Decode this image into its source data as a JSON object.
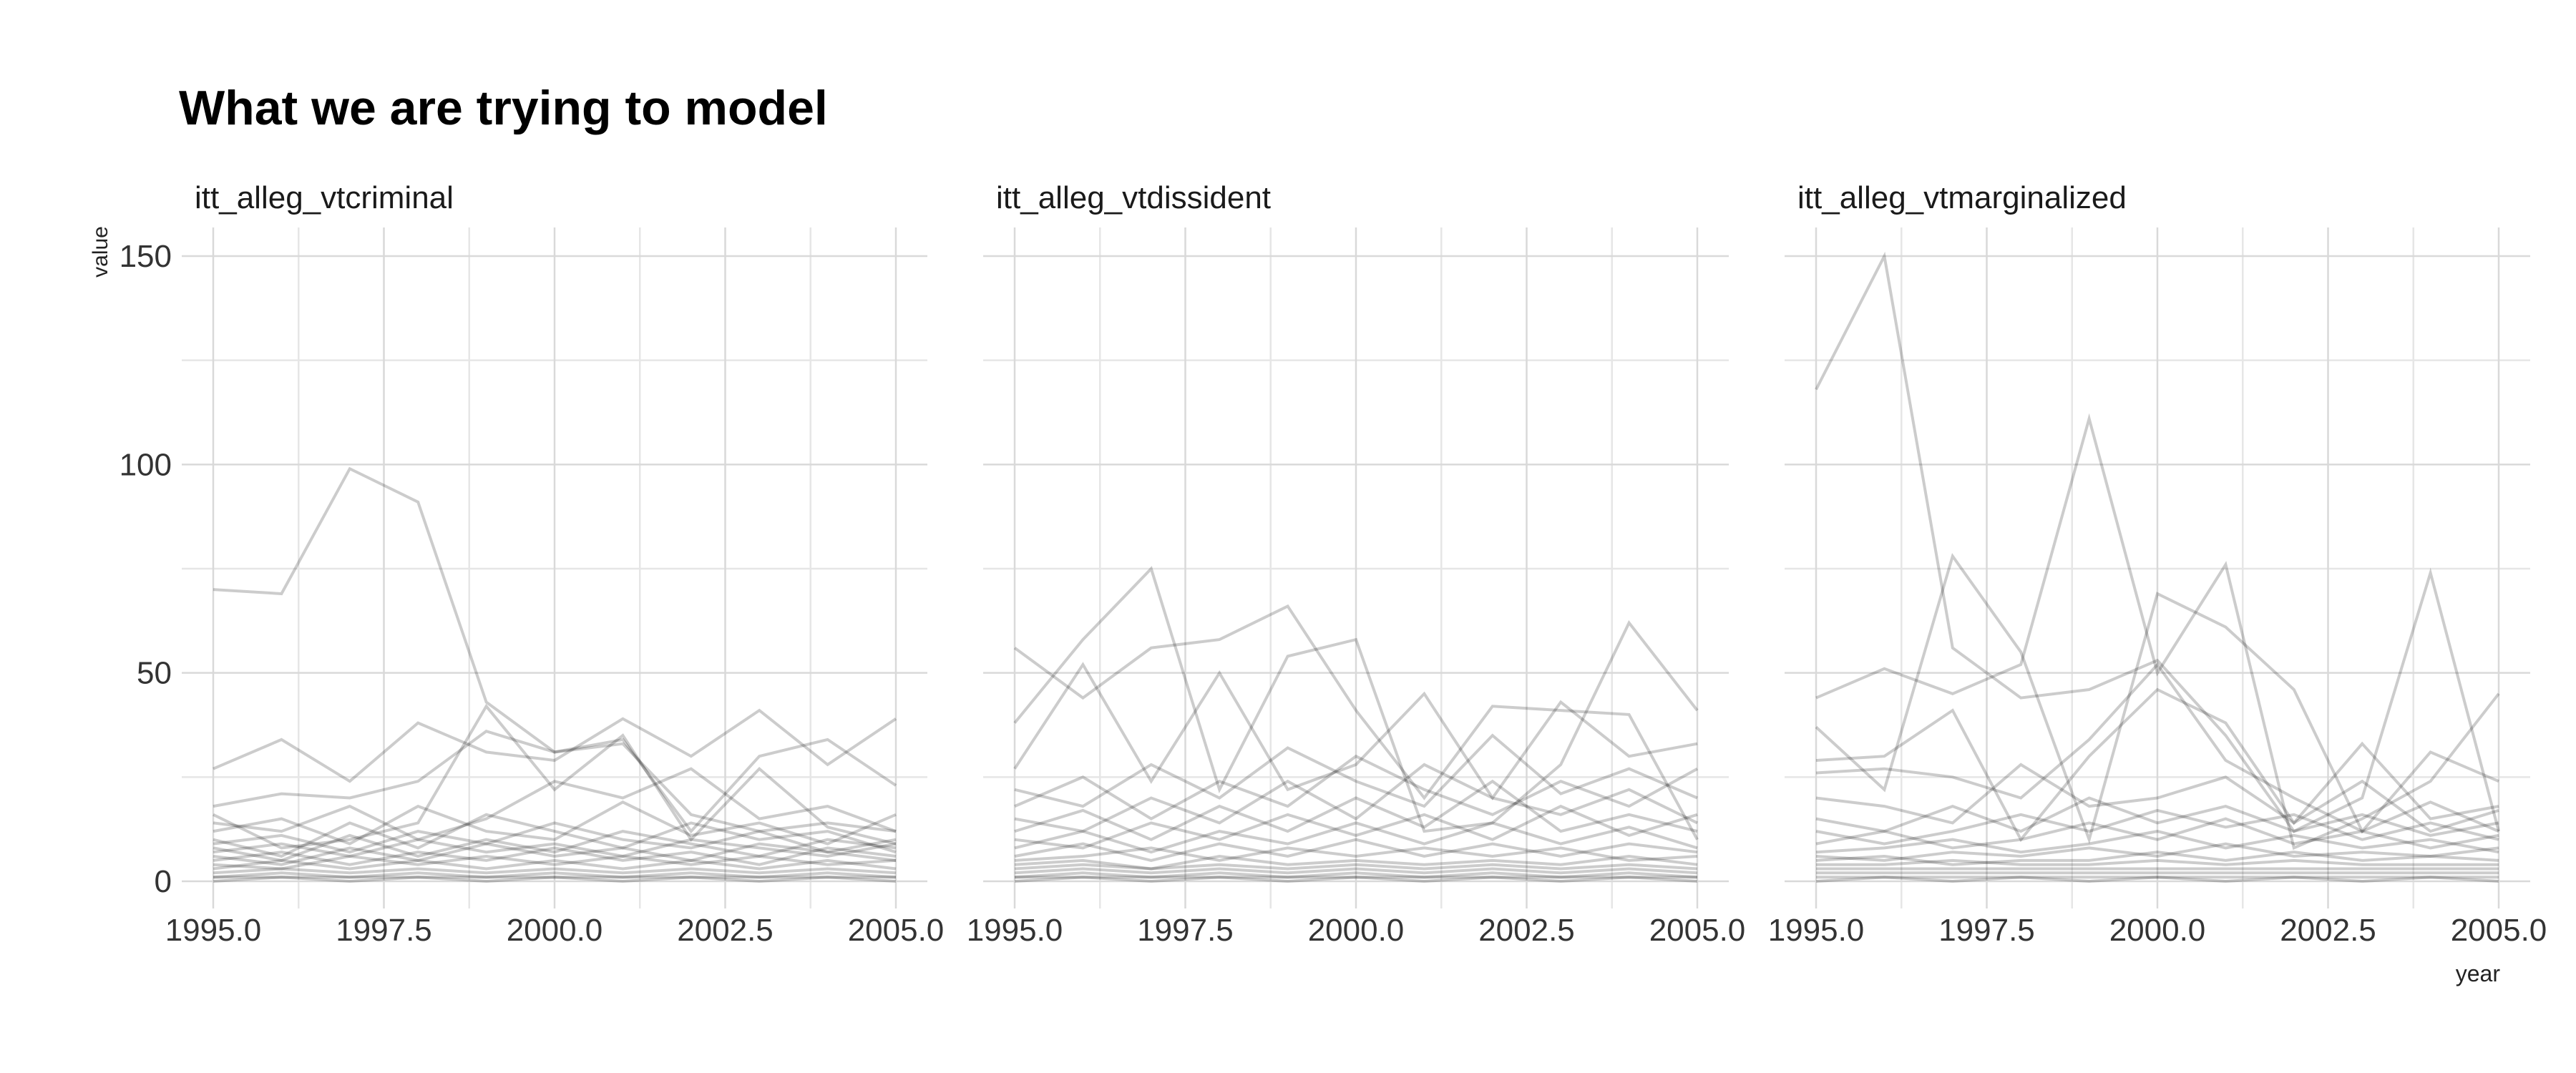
{
  "title": "What we are trying to model",
  "chart_data": {
    "type": "line",
    "xlabel": "year",
    "ylabel": "value",
    "xlim": [
      1995,
      2005
    ],
    "ylim": [
      0,
      150
    ],
    "x_ticks": [
      "1995.0",
      "1997.5",
      "2000.0",
      "2002.5",
      "2005.0"
    ],
    "y_ticks": [
      "0",
      "50",
      "100",
      "150"
    ],
    "x": [
      1995,
      1996,
      1997,
      1998,
      1999,
      2000,
      2001,
      2002,
      2003,
      2004,
      2005
    ],
    "grid": true,
    "line_color": "#000000",
    "line_opacity": 0.2,
    "panels": [
      {
        "name": "itt_alleg_vtcriminal",
        "series": [
          {
            "values": [
              70,
              69,
              99,
              91,
              43,
              31,
              33,
              16,
              12,
              14,
              12
            ]
          },
          {
            "values": [
              27,
              34,
              24,
              38,
              31,
              29,
              39,
              30,
              41,
              28,
              39
            ]
          },
          {
            "values": [
              18,
              21,
              20,
              24,
              36,
              31,
              34,
              12,
              30,
              34,
              23
            ]
          },
          {
            "values": [
              16,
              8,
              10,
              14,
              42,
              22,
              35,
              10,
              27,
              13,
              9
            ]
          },
          {
            "values": [
              14,
              12,
              18,
              10,
              15,
              24,
              20,
              27,
              15,
              18,
              12
            ]
          },
          {
            "values": [
              12,
              15,
              9,
              18,
              12,
              10,
              19,
              11,
              14,
              9,
              16
            ]
          },
          {
            "values": [
              10,
              6,
              14,
              8,
              16,
              12,
              8,
              14,
              10,
              12,
              7
            ]
          },
          {
            "values": [
              9,
              11,
              7,
              12,
              9,
              14,
              10,
              8,
              12,
              7,
              10
            ]
          },
          {
            "values": [
              8,
              5,
              11,
              6,
              10,
              7,
              12,
              9,
              6,
              10,
              8
            ]
          },
          {
            "values": [
              7,
              9,
              6,
              10,
              7,
              9,
              6,
              10,
              8,
              6,
              9
            ]
          },
          {
            "values": [
              6,
              4,
              8,
              5,
              9,
              6,
              8,
              5,
              9,
              7,
              5
            ]
          },
          {
            "values": [
              5,
              7,
              4,
              7,
              5,
              8,
              5,
              7,
              4,
              8,
              6
            ]
          },
          {
            "values": [
              4,
              3,
              6,
              4,
              6,
              4,
              6,
              4,
              6,
              4,
              5
            ]
          },
          {
            "values": [
              3,
              5,
              3,
              5,
              3,
              5,
              3,
              5,
              3,
              5,
              3
            ]
          },
          {
            "values": [
              2,
              3,
              2,
              3,
              2,
              3,
              2,
              3,
              2,
              3,
              2
            ]
          },
          {
            "values": [
              1,
              2,
              1,
              2,
              1,
              2,
              1,
              2,
              1,
              2,
              1
            ]
          },
          {
            "values": [
              1,
              1,
              1,
              1,
              1,
              1,
              1,
              1,
              1,
              1,
              1
            ]
          },
          {
            "values": [
              0,
              1,
              0,
              1,
              0,
              1,
              0,
              1,
              0,
              1,
              0
            ]
          }
        ]
      },
      {
        "name": "itt_alleg_vtdissident",
        "series": [
          {
            "values": [
              56,
              44,
              56,
              58,
              66,
              41,
              20,
              42,
              41,
              40,
              10
            ]
          },
          {
            "values": [
              38,
              58,
              75,
              22,
              54,
              58,
              12,
              14,
              28,
              62,
              41
            ]
          },
          {
            "values": [
              27,
              52,
              24,
              50,
              22,
              28,
              45,
              20,
              43,
              30,
              33
            ]
          },
          {
            "values": [
              22,
              18,
              28,
              20,
              32,
              24,
              18,
              35,
              21,
              27,
              20
            ]
          },
          {
            "values": [
              18,
              25,
              15,
              24,
              18,
              30,
              22,
              16,
              24,
              18,
              27
            ]
          },
          {
            "values": [
              15,
              12,
              20,
              14,
              24,
              15,
              28,
              20,
              16,
              22,
              14
            ]
          },
          {
            "values": [
              12,
              17,
              10,
              18,
              12,
              20,
              13,
              24,
              12,
              16,
              12
            ]
          },
          {
            "values": [
              10,
              8,
              14,
              10,
              16,
              11,
              16,
              10,
              18,
              11,
              16
            ]
          },
          {
            "values": [
              8,
              12,
              7,
              12,
              9,
              14,
              9,
              14,
              9,
              13,
              8
            ]
          },
          {
            "values": [
              6,
              9,
              5,
              9,
              6,
              10,
              6,
              9,
              6,
              9,
              7
            ]
          },
          {
            "values": [
              5,
              6,
              8,
              5,
              8,
              6,
              8,
              6,
              8,
              5,
              6
            ]
          },
          {
            "values": [
              4,
              5,
              3,
              6,
              4,
              5,
              4,
              5,
              4,
              6,
              4
            ]
          },
          {
            "values": [
              3,
              4,
              3,
              4,
              3,
              4,
              3,
              4,
              3,
              4,
              3
            ]
          },
          {
            "values": [
              2,
              3,
              2,
              3,
              2,
              3,
              2,
              3,
              2,
              3,
              2
            ]
          },
          {
            "values": [
              1,
              2,
              1,
              2,
              1,
              2,
              1,
              2,
              1,
              2,
              1
            ]
          },
          {
            "values": [
              1,
              1,
              1,
              1,
              1,
              1,
              1,
              1,
              1,
              1,
              1
            ]
          },
          {
            "values": [
              0,
              1,
              0,
              1,
              0,
              1,
              0,
              1,
              0,
              1,
              0
            ]
          }
        ]
      },
      {
        "name": "itt_alleg_vtmarginalized",
        "series": [
          {
            "values": [
              118,
              150,
              56,
              44,
              46,
              53,
              35,
              12,
              20,
              74,
              12
            ]
          },
          {
            "values": [
              44,
              51,
              45,
              52,
              111,
              50,
              76,
              8,
              15,
              24,
              45
            ]
          },
          {
            "values": [
              37,
              22,
              78,
              55,
              10,
              69,
              61,
              46,
              12,
              31,
              24
            ]
          },
          {
            "values": [
              29,
              30,
              41,
              10,
              30,
              46,
              38,
              14,
              33,
              15,
              18
            ]
          },
          {
            "values": [
              26,
              27,
              25,
              20,
              34,
              52,
              29,
              20,
              12,
              19,
              12
            ]
          },
          {
            "values": [
              20,
              18,
              14,
              28,
              18,
              20,
              25,
              14,
              24,
              12,
              17
            ]
          },
          {
            "values": [
              15,
              12,
              18,
              12,
              20,
              14,
              18,
              12,
              16,
              11,
              14
            ]
          },
          {
            "values": [
              12,
              9,
              12,
              16,
              12,
              17,
              13,
              16,
              10,
              14,
              10
            ]
          },
          {
            "values": [
              9,
              12,
              8,
              10,
              14,
              10,
              15,
              9,
              12,
              8,
              11
            ]
          },
          {
            "values": [
              7,
              8,
              10,
              7,
              9,
              12,
              8,
              11,
              8,
              10,
              7
            ]
          },
          {
            "values": [
              6,
              5,
              7,
              6,
              8,
              6,
              9,
              6,
              7,
              6,
              8
            ]
          },
          {
            "values": [
              5,
              6,
              4,
              5,
              5,
              7,
              5,
              7,
              5,
              6,
              5
            ]
          },
          {
            "values": [
              4,
              4,
              5,
              4,
              4,
              5,
              4,
              5,
              4,
              4,
              4
            ]
          },
          {
            "values": [
              3,
              3,
              3,
              3,
              3,
              3,
              3,
              3,
              3,
              3,
              3
            ]
          },
          {
            "values": [
              2,
              2,
              2,
              2,
              2,
              2,
              2,
              2,
              2,
              2,
              2
            ]
          },
          {
            "values": [
              1,
              1,
              1,
              1,
              1,
              1,
              1,
              1,
              1,
              1,
              1
            ]
          },
          {
            "values": [
              0,
              1,
              0,
              1,
              0,
              1,
              0,
              1,
              0,
              1,
              0
            ]
          }
        ]
      }
    ]
  }
}
